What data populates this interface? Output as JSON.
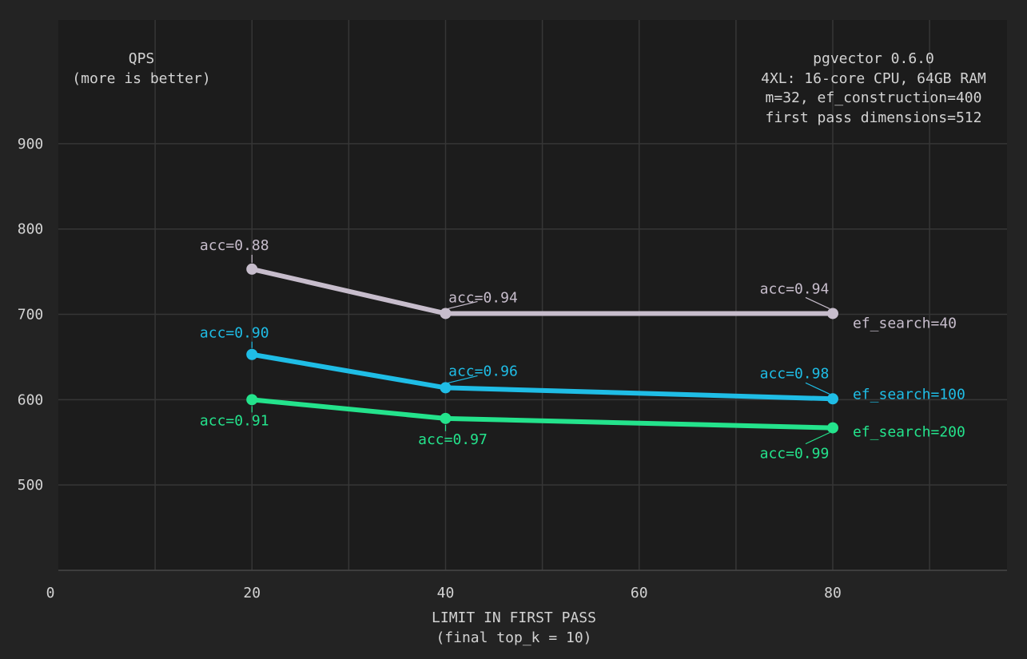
{
  "chart_data": {
    "type": "line",
    "title": "QPS",
    "subtitle": "(more is better)",
    "info": [
      "pgvector 0.6.0",
      "4XL: 16-core CPU, 64GB RAM",
      "m=32, ef_construction=400",
      "first pass dimensions=512"
    ],
    "xlabel": "LIMIT IN FIRST PASS",
    "xlabel_sub": "(final top_k = 10)",
    "ylabel": "",
    "xlim": [
      0,
      98
    ],
    "ylim": [
      400,
      1045
    ],
    "x_ticks": [
      "0",
      "20",
      "40",
      "60",
      "80"
    ],
    "y_ticks": [
      "500",
      "600",
      "700",
      "800",
      "900"
    ],
    "x_gridlines": [
      10,
      20,
      30,
      40,
      50,
      60,
      70,
      80,
      90
    ],
    "y_gridlines": [
      400,
      500,
      600,
      700,
      800,
      900
    ],
    "grid": true,
    "x": [
      20,
      40,
      80
    ],
    "series": [
      {
        "name": "ef_search=40",
        "color": "#c7bdcc",
        "values": [
          753,
          701,
          701
        ],
        "labels": [
          "acc=0.88",
          "acc=0.94",
          "acc=0.94"
        ]
      },
      {
        "name": "ef_search=100",
        "color": "#1fbde6",
        "values": [
          653,
          614,
          601
        ],
        "labels": [
          "acc=0.90",
          "acc=0.96",
          "acc=0.98"
        ]
      },
      {
        "name": "ef_search=200",
        "color": "#24e38c",
        "values": [
          600,
          578,
          567
        ],
        "labels": [
          "acc=0.91",
          "acc=0.97",
          "acc=0.99"
        ]
      }
    ],
    "colors": {
      "background": "#232323",
      "plot_background": "#1c1c1c",
      "grid": "#363636",
      "axis": "#444444",
      "text": "#d3d3d3"
    }
  }
}
